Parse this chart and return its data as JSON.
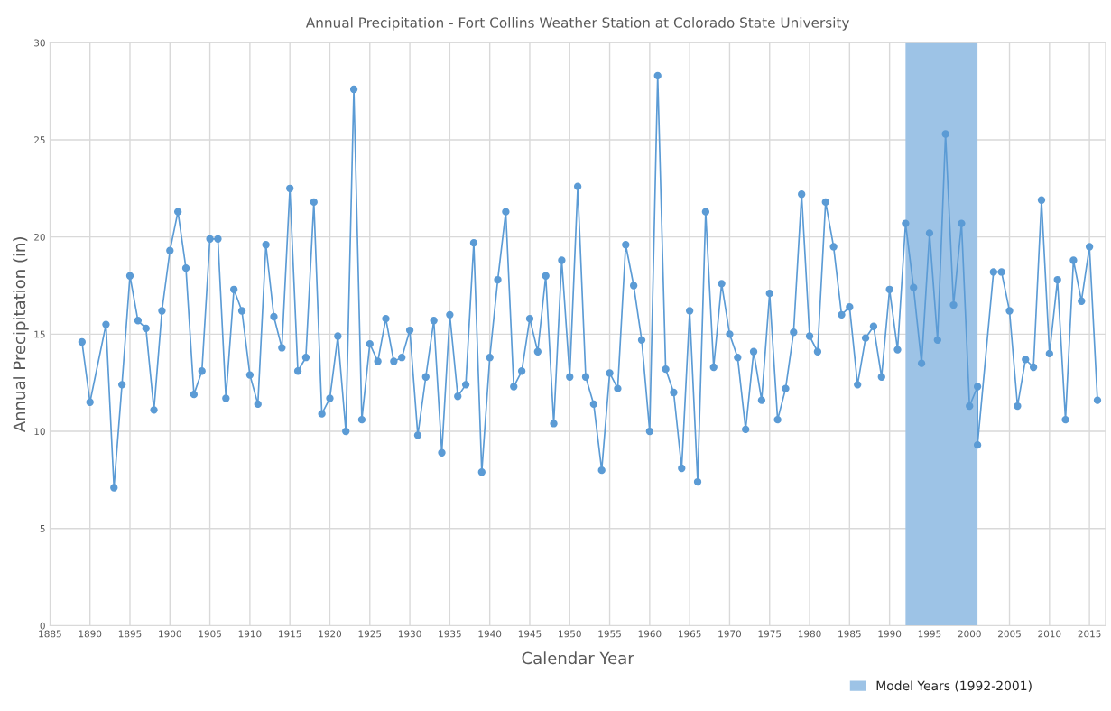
{
  "chart_data": {
    "type": "line",
    "title": "Annual Precipitation - Fort Collins Weather Station at Colorado State University",
    "xlabel": "Calendar Year",
    "ylabel": "Annual Precipitation (in)",
    "x": [
      1889,
      1890,
      1892,
      1893,
      1894,
      1895,
      1896,
      1897,
      1898,
      1899,
      1900,
      1901,
      1902,
      1903,
      1904,
      1905,
      1906,
      1907,
      1908,
      1909,
      1910,
      1911,
      1912,
      1913,
      1914,
      1915,
      1916,
      1917,
      1918,
      1919,
      1920,
      1921,
      1922,
      1923,
      1924,
      1925,
      1926,
      1927,
      1928,
      1929,
      1930,
      1931,
      1932,
      1933,
      1934,
      1935,
      1936,
      1937,
      1938,
      1939,
      1940,
      1941,
      1942,
      1943,
      1944,
      1945,
      1946,
      1947,
      1948,
      1949,
      1950,
      1951,
      1952,
      1953,
      1954,
      1955,
      1956,
      1957,
      1958,
      1959,
      1960,
      1961,
      1962,
      1963,
      1964,
      1965,
      1966,
      1967,
      1968,
      1969,
      1970,
      1971,
      1972,
      1973,
      1974,
      1975,
      1976,
      1977,
      1978,
      1979,
      1980,
      1981,
      1982,
      1983,
      1984,
      1985,
      1986,
      1987,
      1988,
      1989,
      1990,
      1991,
      1992,
      1993,
      1994,
      1995,
      1996,
      1997,
      1998,
      1999,
      2000,
      2001,
      2001,
      2003,
      2004,
      2005,
      2006,
      2007,
      2008,
      2009,
      2010,
      2011,
      2012,
      2013,
      2014,
      2015,
      2016
    ],
    "series": [
      {
        "color": "#5b9bd5",
        "values": [
          14.6,
          11.5,
          15.5,
          7.1,
          12.4,
          18.0,
          15.7,
          15.3,
          11.1,
          16.2,
          19.3,
          21.3,
          18.4,
          11.9,
          13.1,
          19.9,
          19.9,
          11.7,
          17.3,
          16.2,
          12.9,
          11.4,
          19.6,
          15.9,
          14.3,
          22.5,
          13.1,
          13.8,
          21.8,
          10.9,
          11.7,
          14.9,
          10.0,
          27.6,
          10.6,
          14.5,
          13.6,
          15.8,
          13.6,
          13.8,
          15.2,
          9.8,
          12.8,
          15.7,
          8.9,
          16.0,
          11.8,
          12.4,
          19.7,
          7.9,
          13.8,
          17.8,
          21.3,
          12.3,
          13.1,
          15.8,
          14.1,
          18.0,
          10.4,
          18.8,
          12.8,
          22.6,
          12.8,
          11.4,
          8.0,
          13.0,
          12.2,
          19.6,
          17.5,
          14.7,
          10.0,
          28.3,
          13.2,
          12.0,
          8.1,
          16.2,
          7.4,
          21.3,
          13.3,
          17.6,
          15.0,
          13.8,
          10.1,
          14.1,
          11.6,
          17.1,
          10.6,
          12.2,
          15.1,
          22.2,
          14.9,
          14.1,
          21.8,
          19.5,
          16.0,
          16.4,
          12.4,
          14.8,
          15.4,
          12.8,
          17.3,
          14.2,
          20.7,
          17.4,
          13.5,
          20.2,
          14.7,
          25.3,
          16.5,
          20.7,
          11.3,
          12.3,
          9.3,
          18.2,
          18.2,
          16.2,
          11.3,
          13.7,
          13.3,
          21.9,
          14.0,
          17.8,
          10.6,
          18.8,
          16.7,
          19.5,
          11.6
        ]
      }
    ],
    "xlim": [
      1885,
      2017
    ],
    "xticks": [
      1885,
      1890,
      1895,
      1900,
      1905,
      1910,
      1915,
      1920,
      1925,
      1930,
      1935,
      1940,
      1945,
      1950,
      1955,
      1960,
      1965,
      1970,
      1975,
      1980,
      1985,
      1990,
      1995,
      2000,
      2005,
      2010,
      2015
    ],
    "ylim": [
      0,
      30
    ],
    "yticks": [
      0,
      5,
      10,
      15,
      20,
      25,
      30
    ],
    "bands": [
      {
        "axis": "x",
        "from": 1992,
        "to": 2001,
        "label": "Model Years (1992-2001)",
        "color": "#9dc3e6"
      }
    ],
    "grid": true,
    "marker": "circle",
    "line_style": "solid",
    "legend": "bottom"
  }
}
